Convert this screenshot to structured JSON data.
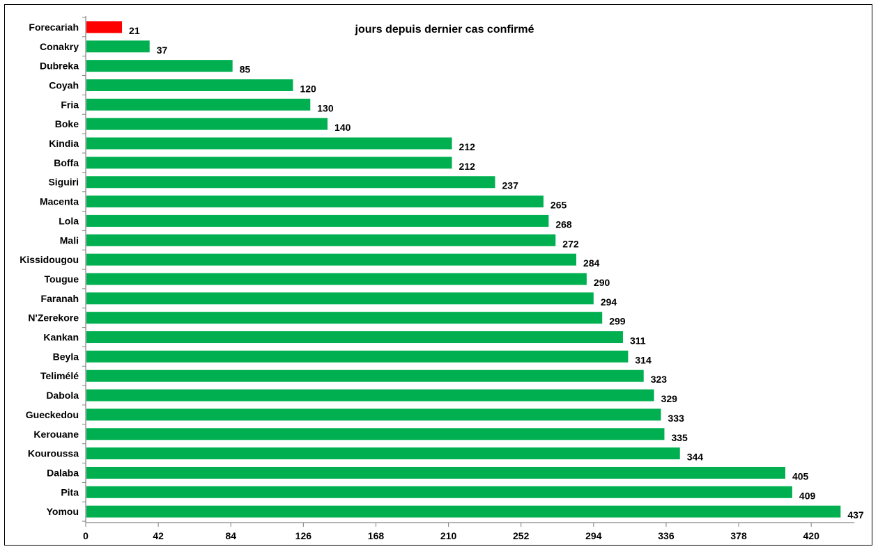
{
  "chart_data": {
    "type": "bar",
    "orientation": "horizontal",
    "title": "jours depuis dernier cas confirmé",
    "xlabel": "",
    "ylabel": "",
    "categories": [
      "Forecariah",
      "Conakry",
      "Dubreka",
      "Coyah",
      "Fria",
      "Boke",
      "Kindia",
      "Boffa",
      "Siguiri",
      "Macenta",
      "Lola",
      "Mali",
      "Kissidougou",
      "Tougue",
      "Faranah",
      "N'Zerekore",
      "Kankan",
      "Beyla",
      "Telimélé",
      "Dabola",
      "Gueckedou",
      "Kerouane",
      "Kouroussa",
      "Dalaba",
      "Pita",
      "Yomou"
    ],
    "values": [
      21,
      37,
      85,
      120,
      130,
      140,
      212,
      212,
      237,
      265,
      268,
      272,
      284,
      290,
      294,
      299,
      311,
      314,
      323,
      329,
      333,
      335,
      344,
      405,
      409,
      437
    ],
    "highlight": {
      "index": 0,
      "color": "#ff0000"
    },
    "bar_color": "#00b050",
    "xlim": [
      0,
      445
    ],
    "xticks": [
      0,
      42,
      84,
      126,
      168,
      210,
      252,
      294,
      336,
      378,
      420
    ],
    "grid": false,
    "legend": "none"
  }
}
